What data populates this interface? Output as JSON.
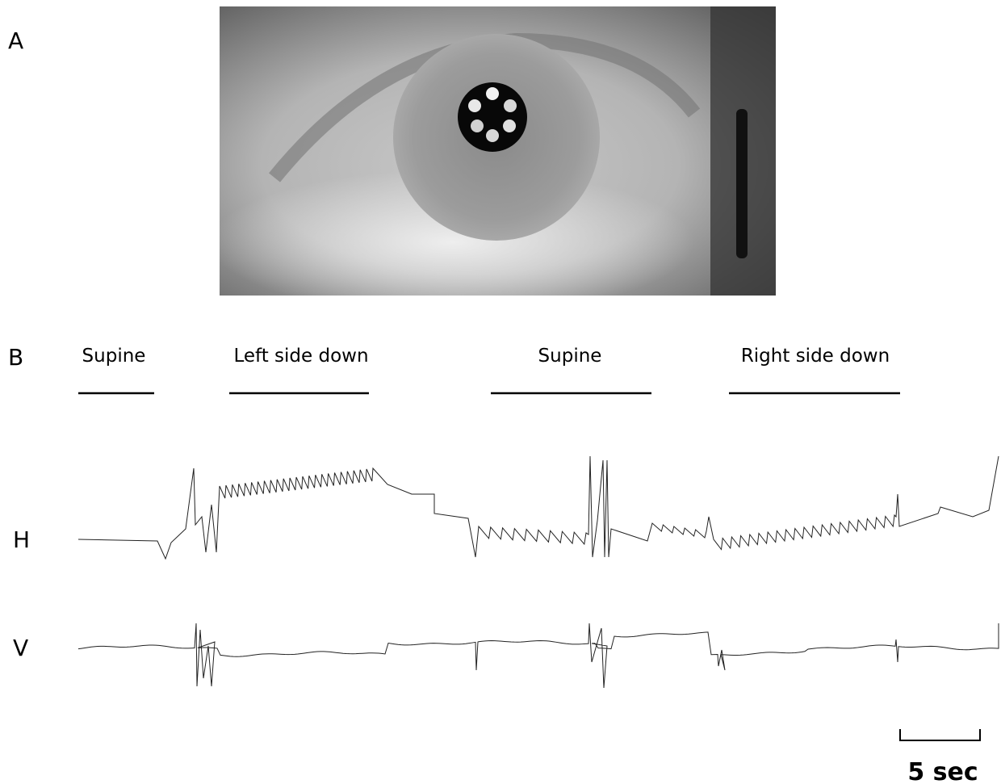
{
  "panel_a": {
    "label": "A"
  },
  "panel_b": {
    "label": "B",
    "positions": [
      "Supine",
      "Left side down",
      "Supine",
      "Right side down"
    ],
    "traces": [
      "H",
      "V"
    ],
    "scale_bar": "5 sec"
  }
}
